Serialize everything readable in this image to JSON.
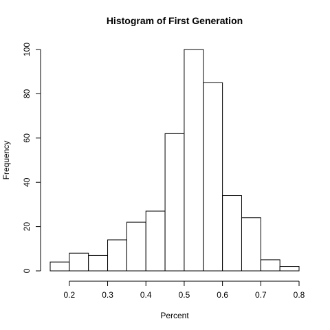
{
  "chart_data": {
    "type": "bar",
    "title": "Histogram of First Generation",
    "xlabel": "Percent",
    "ylabel": "Frequency",
    "bin_edges": [
      0.15,
      0.2,
      0.25,
      0.3,
      0.35,
      0.4,
      0.45,
      0.5,
      0.55,
      0.6,
      0.65,
      0.7,
      0.75,
      0.8
    ],
    "values": [
      4,
      8,
      7,
      14,
      22,
      27,
      62,
      100,
      85,
      34,
      24,
      5,
      2
    ],
    "x_ticks": [
      0.2,
      0.3,
      0.4,
      0.5,
      0.6,
      0.7,
      0.8
    ],
    "x_tick_labels": [
      "0.2",
      "0.3",
      "0.4",
      "0.5",
      "0.6",
      "0.7",
      "0.8"
    ],
    "y_ticks": [
      0,
      20,
      40,
      60,
      80,
      100
    ],
    "y_tick_labels": [
      "0",
      "20",
      "40",
      "60",
      "80",
      "100"
    ],
    "xlim": [
      0.15,
      0.8
    ],
    "ylim": [
      0,
      100
    ],
    "bar_fill": "#ffffff",
    "bar_stroke": "#000000",
    "grid": false,
    "legend": "none"
  }
}
